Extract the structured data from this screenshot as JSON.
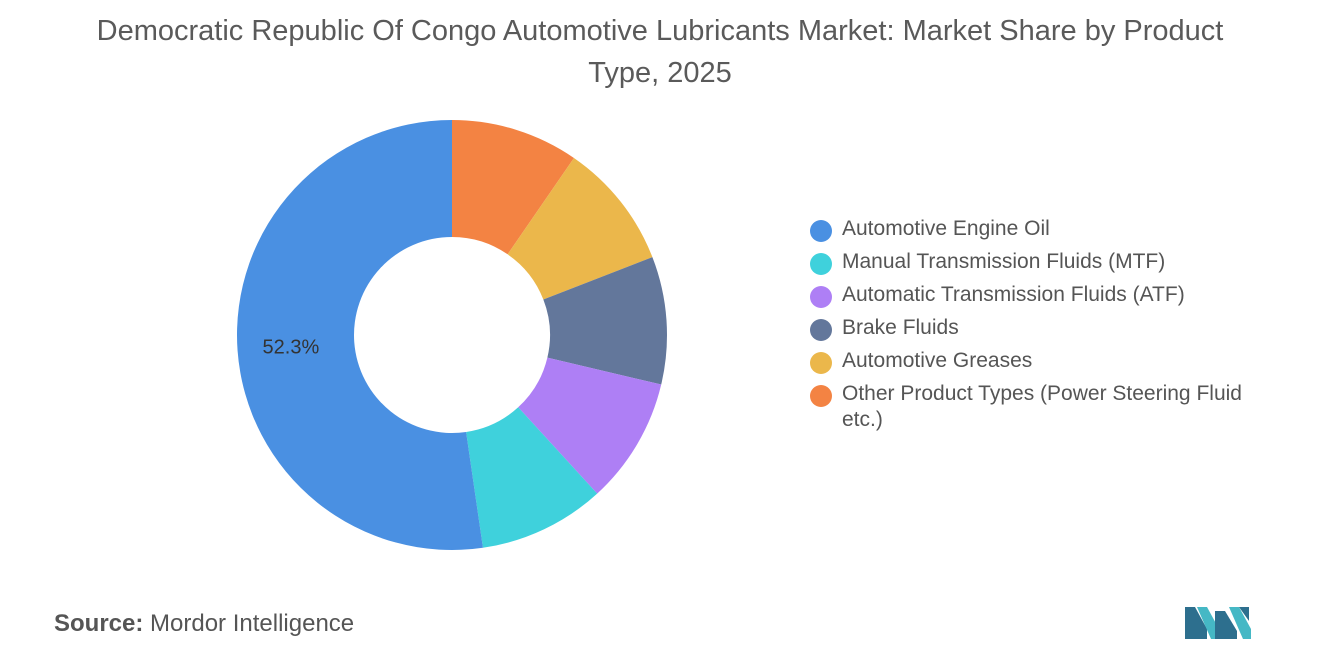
{
  "chart_data": {
    "type": "pie",
    "donut": true,
    "title": "Democratic Republic Of Congo Automotive Lubricants Market: Market Share by Product Type, 2025",
    "categories": [
      "Automotive Engine Oil",
      "Manual Transmission Fluids (MTF)",
      "Automatic Transmission Fluids (ATF)",
      "Brake Fluids",
      "Automotive Greases",
      "Other Product Types (Power Steering Fluid etc.)"
    ],
    "values": [
      52.3,
      9.5,
      9.5,
      9.6,
      9.5,
      9.6
    ],
    "colors": [
      "#4a90e2",
      "#3fd1dc",
      "#ae7ff5",
      "#63779b",
      "#ebb74b",
      "#f38343"
    ],
    "data_labels": [
      {
        "index": 0,
        "text": "52.3%"
      }
    ],
    "legend_position": "right"
  },
  "source": {
    "label": "Source:",
    "name": "Mordor Intelligence"
  },
  "logo": {
    "icon": "mordor-intelligence-logo",
    "colors": [
      "#2d6f8e",
      "#45b8c5"
    ]
  }
}
